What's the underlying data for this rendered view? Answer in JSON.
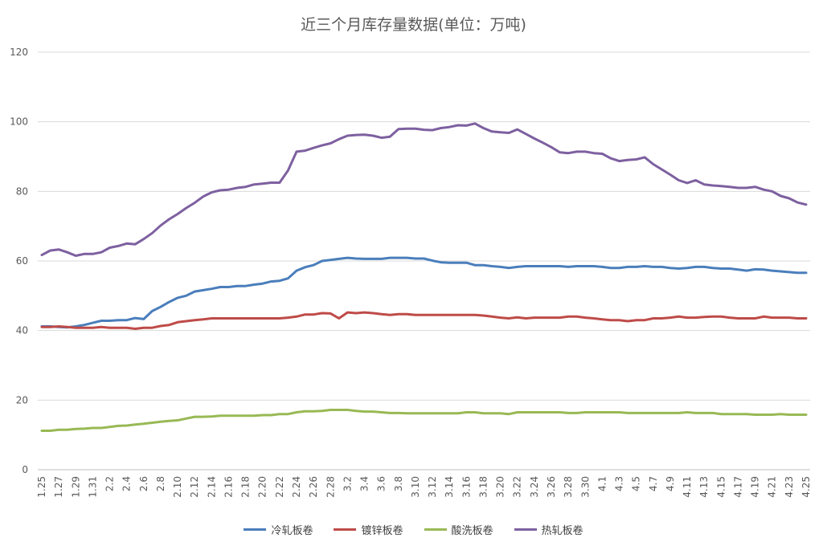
{
  "chart_data": {
    "type": "line",
    "title": "近三个月库存量数据(单位：万吨)",
    "ylim": [
      0,
      120
    ],
    "yticks": [
      0,
      20,
      40,
      60,
      80,
      100,
      120
    ],
    "grid": "horizontal",
    "legend": "bottom",
    "x": [
      "1.25",
      "1.26",
      "1.27",
      "1.28",
      "1.29",
      "1.30",
      "1.31",
      "2.1",
      "2.2",
      "2.3",
      "2.4",
      "2.5",
      "2.6",
      "2.7",
      "2.8",
      "2.9",
      "2.10",
      "2.11",
      "2.12",
      "2.13",
      "2.14",
      "2.15",
      "2.16",
      "2.17",
      "2.18",
      "2.19",
      "2.20",
      "2.21",
      "2.22",
      "2.23",
      "2.24",
      "2.25",
      "2.26",
      "2.27",
      "2.28",
      "3.1",
      "3.2",
      "3.3",
      "3.4",
      "3.5",
      "3.6",
      "3.7",
      "3.8",
      "3.9",
      "3.10",
      "3.11",
      "3.12",
      "3.13",
      "3.14",
      "3.15",
      "3.16",
      "3.17",
      "3.18",
      "3.19",
      "3.20",
      "3.21",
      "3.22",
      "3.23",
      "3.24",
      "3.25",
      "3.26",
      "3.27",
      "3.28",
      "3.29",
      "3.30",
      "3.31",
      "4.1",
      "4.2",
      "4.3",
      "4.4",
      "4.5",
      "4.6",
      "4.7",
      "4.8",
      "4.9",
      "4.10",
      "4.11",
      "4.12",
      "4.13",
      "4.14",
      "4.15",
      "4.16",
      "4.17",
      "4.18",
      "4.19",
      "4.20",
      "4.21",
      "4.22",
      "4.23",
      "4.24",
      "4.25"
    ],
    "xticks": [
      "1.25",
      "1.27",
      "1.29",
      "1.31",
      "2.2",
      "2.4",
      "2.6",
      "2.8",
      "2.10",
      "2.12",
      "2.14",
      "2.16",
      "2.18",
      "2.20",
      "2.22",
      "2.24",
      "2.26",
      "2.28",
      "3.2",
      "3.4",
      "3.6",
      "3.8",
      "3.10",
      "3.12",
      "3.14",
      "3.16",
      "3.18",
      "3.20",
      "3.22",
      "3.24",
      "3.26",
      "3.28",
      "3.30",
      "4.1",
      "4.3",
      "4.5",
      "4.7",
      "4.9",
      "4.11",
      "4.13",
      "4.15",
      "4.17",
      "4.19",
      "4.21",
      "4.23",
      "4.25"
    ],
    "series": [
      {
        "name": "冷轧板卷",
        "color": "#4a7ebb",
        "values": [
          41.2,
          41.2,
          41.0,
          40.9,
          41.2,
          41.6,
          42.2,
          42.8,
          42.8,
          43.0,
          43.0,
          43.6,
          43.3,
          45.6,
          46.8,
          48.2,
          49.4,
          50.0,
          51.2,
          51.6,
          52.0,
          52.5,
          52.5,
          52.8,
          52.8,
          53.2,
          53.5,
          54.1,
          54.3,
          55.0,
          57.2,
          58.2,
          58.8,
          60.0,
          60.3,
          60.6,
          60.9,
          60.7,
          60.6,
          60.6,
          60.6,
          60.9,
          60.9,
          60.9,
          60.7,
          60.7,
          60.1,
          59.6,
          59.5,
          59.5,
          59.5,
          58.8,
          58.8,
          58.5,
          58.3,
          58.0,
          58.3,
          58.5,
          58.5,
          58.5,
          58.5,
          58.5,
          58.3,
          58.5,
          58.5,
          58.5,
          58.3,
          58.0,
          58.0,
          58.3,
          58.3,
          58.5,
          58.3,
          58.3,
          58.0,
          57.8,
          58.0,
          58.3,
          58.3,
          58.0,
          57.8,
          57.8,
          57.5,
          57.2,
          57.6,
          57.5,
          57.2,
          57.0,
          56.8,
          56.6,
          56.6
        ]
      },
      {
        "name": "镀锌板卷",
        "color": "#be4b48",
        "values": [
          41.0,
          41.0,
          41.2,
          41.0,
          40.8,
          40.8,
          40.8,
          41.0,
          40.8,
          40.8,
          40.8,
          40.5,
          40.8,
          40.8,
          41.3,
          41.6,
          42.4,
          42.7,
          43.0,
          43.2,
          43.5,
          43.5,
          43.5,
          43.5,
          43.5,
          43.5,
          43.5,
          43.5,
          43.5,
          43.7,
          44.0,
          44.6,
          44.6,
          45.0,
          44.9,
          43.5,
          45.2,
          45.0,
          45.2,
          45.0,
          44.7,
          44.5,
          44.7,
          44.7,
          44.5,
          44.5,
          44.5,
          44.5,
          44.5,
          44.5,
          44.5,
          44.5,
          44.3,
          44.0,
          43.7,
          43.5,
          43.8,
          43.5,
          43.7,
          43.7,
          43.7,
          43.7,
          44.0,
          44.0,
          43.7,
          43.5,
          43.2,
          43.0,
          43.0,
          42.7,
          43.0,
          43.0,
          43.5,
          43.5,
          43.7,
          44.0,
          43.7,
          43.7,
          43.9,
          44.0,
          44.0,
          43.7,
          43.5,
          43.5,
          43.5,
          44.0,
          43.7,
          43.7,
          43.7,
          43.5,
          43.5
        ]
      },
      {
        "name": "酸洗板卷",
        "color": "#98b954",
        "values": [
          11.2,
          11.2,
          11.5,
          11.5,
          11.7,
          11.8,
          12.0,
          12.0,
          12.3,
          12.6,
          12.7,
          13.0,
          13.2,
          13.5,
          13.8,
          14.0,
          14.2,
          14.7,
          15.2,
          15.2,
          15.3,
          15.5,
          15.5,
          15.5,
          15.5,
          15.5,
          15.7,
          15.7,
          16.0,
          16.0,
          16.5,
          16.8,
          16.8,
          16.9,
          17.2,
          17.2,
          17.2,
          16.9,
          16.7,
          16.7,
          16.5,
          16.3,
          16.3,
          16.2,
          16.2,
          16.2,
          16.2,
          16.2,
          16.2,
          16.2,
          16.5,
          16.5,
          16.2,
          16.2,
          16.2,
          16.0,
          16.5,
          16.5,
          16.5,
          16.5,
          16.5,
          16.5,
          16.3,
          16.3,
          16.5,
          16.5,
          16.5,
          16.5,
          16.5,
          16.3,
          16.3,
          16.3,
          16.3,
          16.3,
          16.3,
          16.3,
          16.5,
          16.3,
          16.3,
          16.3,
          16.0,
          16.0,
          16.0,
          16.0,
          15.8,
          15.8,
          15.8,
          16.0,
          15.8,
          15.8,
          15.8
        ]
      },
      {
        "name": "热轧板卷",
        "color": "#7d60a0",
        "values": [
          61.7,
          63.0,
          63.3,
          62.5,
          61.5,
          62.0,
          62.0,
          62.5,
          63.8,
          64.3,
          65.0,
          64.8,
          66.3,
          68.0,
          70.2,
          72.0,
          73.5,
          75.2,
          76.7,
          78.5,
          79.7,
          80.3,
          80.5,
          81.0,
          81.3,
          82.0,
          82.2,
          82.5,
          82.5,
          86.0,
          91.4,
          91.7,
          92.5,
          93.2,
          93.8,
          95.0,
          96.0,
          96.2,
          96.3,
          96.0,
          95.4,
          95.7,
          97.9,
          98.0,
          98.0,
          97.7,
          97.6,
          98.2,
          98.5,
          99.0,
          98.9,
          99.5,
          98.2,
          97.2,
          97.0,
          96.8,
          97.8,
          96.5,
          95.2,
          94.0,
          92.7,
          91.2,
          91.0,
          91.4,
          91.4,
          91.0,
          90.8,
          89.5,
          88.7,
          89.0,
          89.2,
          89.8,
          87.8,
          86.3,
          84.8,
          83.2,
          82.4,
          83.2,
          82.0,
          81.7,
          81.5,
          81.3,
          81.0,
          81.0,
          81.3,
          80.5,
          80.0,
          78.7,
          78.0,
          76.8,
          76.2
        ]
      }
    ]
  }
}
